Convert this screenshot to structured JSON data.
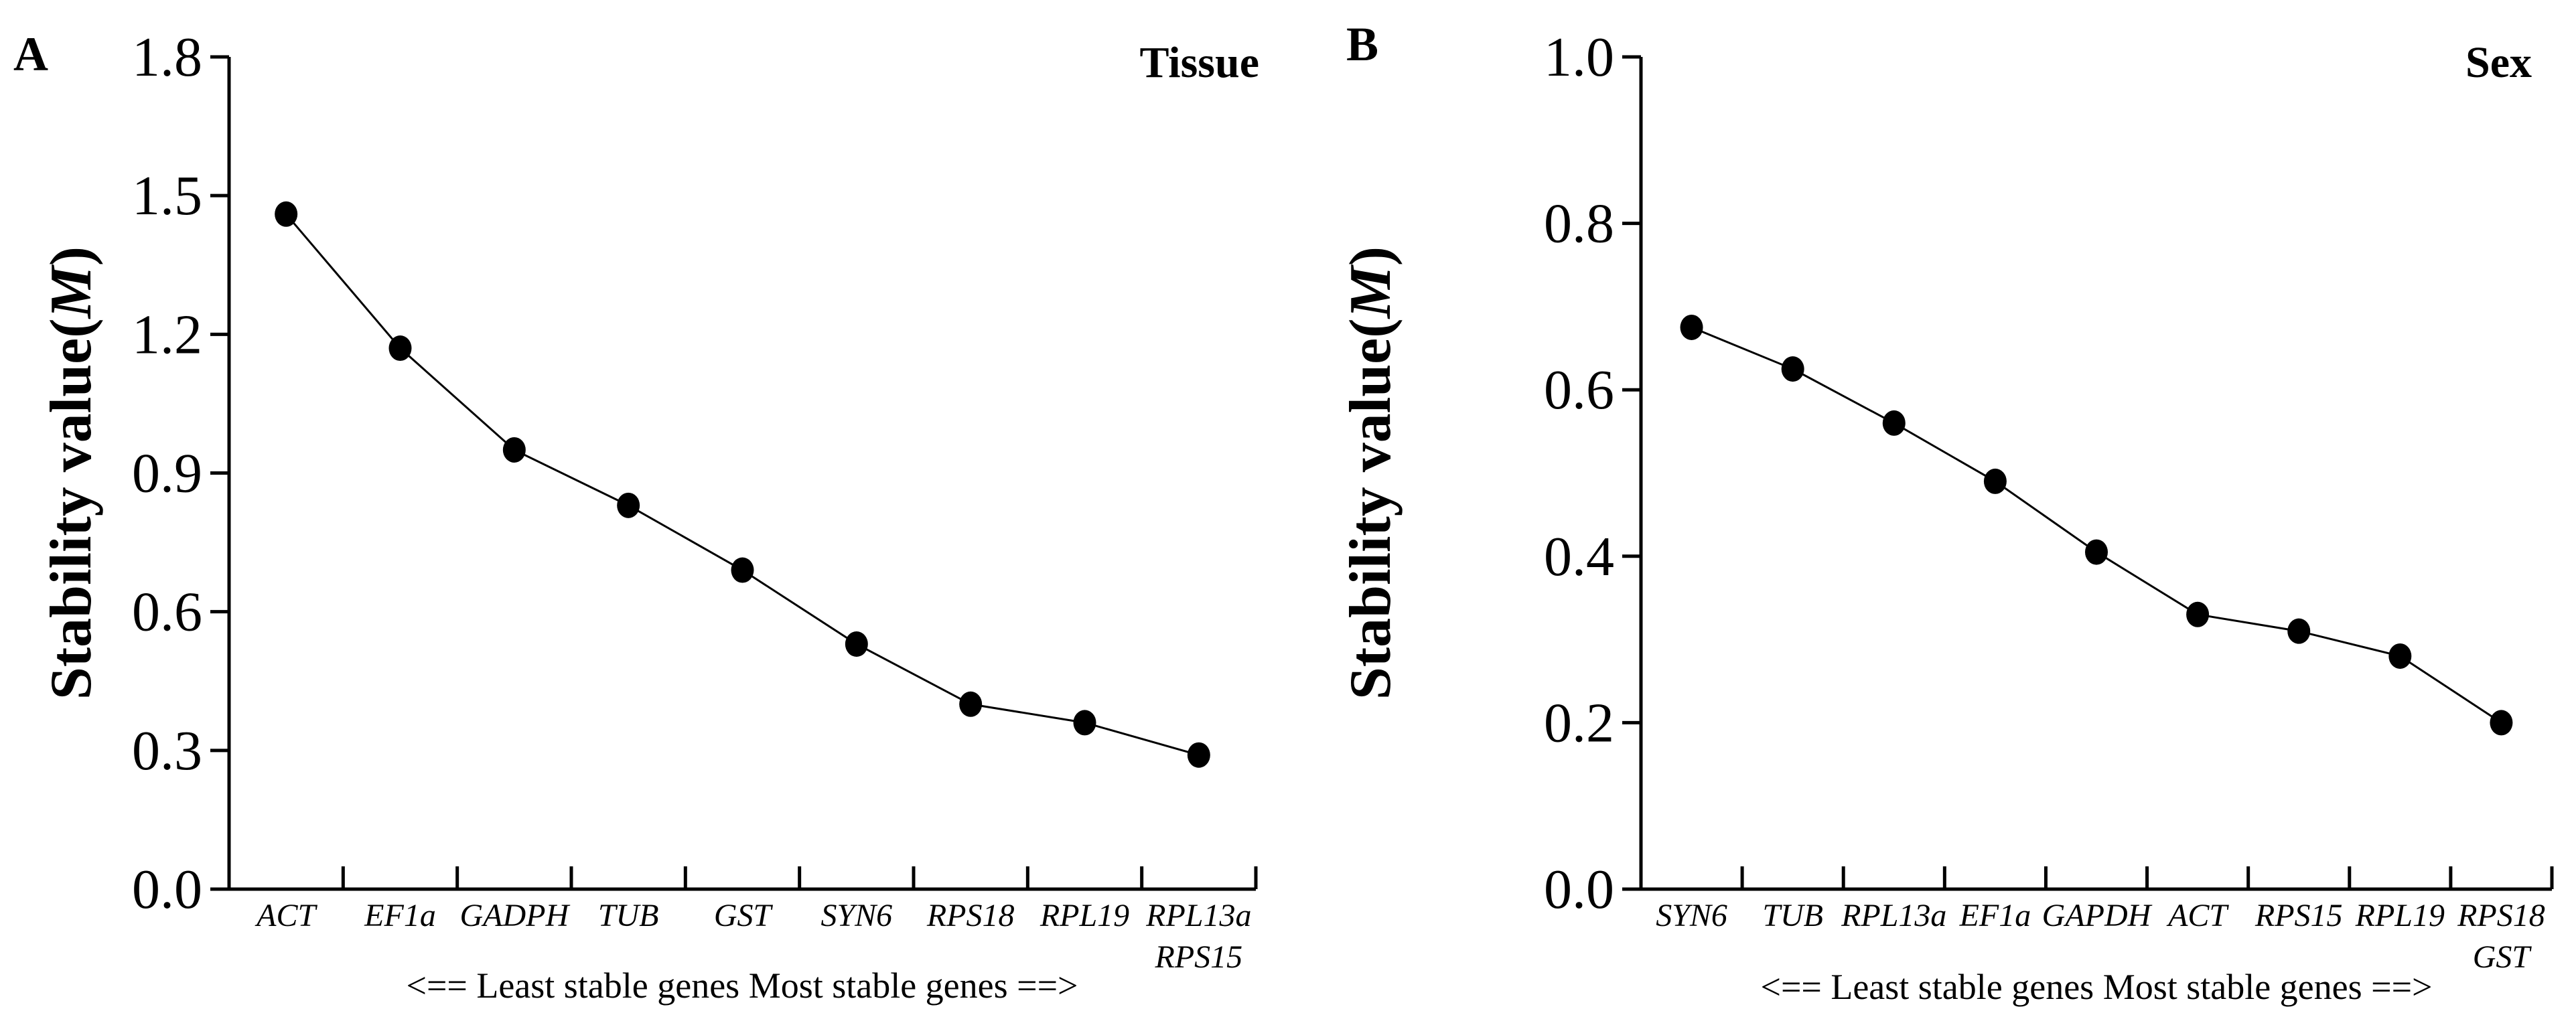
{
  "chart_data": [
    {
      "panel": "A",
      "type": "line",
      "title": "Tissue",
      "ylabel_prefix": "Stability value(",
      "ylabel_var": "M",
      "ylabel_suffix": ")",
      "ylim": [
        0.0,
        1.8
      ],
      "yticks": [
        "0.0",
        "0.3",
        "0.6",
        "0.9",
        "1.2",
        "1.5",
        "1.8"
      ],
      "categories": [
        [
          "ACT"
        ],
        [
          "EF1a"
        ],
        [
          "GADPH"
        ],
        [
          "TUB"
        ],
        [
          "GST"
        ],
        [
          "SYN6"
        ],
        [
          "RPS18"
        ],
        [
          "RPL19"
        ],
        [
          "RPL13a",
          "RPS15"
        ]
      ],
      "values": [
        1.46,
        1.17,
        0.95,
        0.83,
        0.69,
        0.53,
        0.4,
        0.36,
        0.29
      ],
      "caption": "<== Least stable genes  Most stable genes ==>",
      "grid": false,
      "legend": "none"
    },
    {
      "panel": "B",
      "type": "line",
      "title": "Sex",
      "ylabel_prefix": "Stability value(",
      "ylabel_var": "M",
      "ylabel_suffix": ")",
      "ylim": [
        0.0,
        1.0
      ],
      "yticks": [
        "0.0",
        "0.2",
        "0.4",
        "0.6",
        "0.8",
        "1.0"
      ],
      "categories": [
        [
          "SYN6"
        ],
        [
          "TUB"
        ],
        [
          "RPL13a"
        ],
        [
          "EF1a"
        ],
        [
          "GAPDH"
        ],
        [
          "ACT"
        ],
        [
          "RPS15"
        ],
        [
          "RPL19"
        ],
        [
          "RPS18",
          "GST"
        ]
      ],
      "values": [
        0.675,
        0.625,
        0.56,
        0.49,
        0.405,
        0.33,
        0.31,
        0.28,
        0.2
      ],
      "caption": "<==  Least stable genes      Most stable genes ==>",
      "grid": false,
      "legend": "none"
    }
  ]
}
